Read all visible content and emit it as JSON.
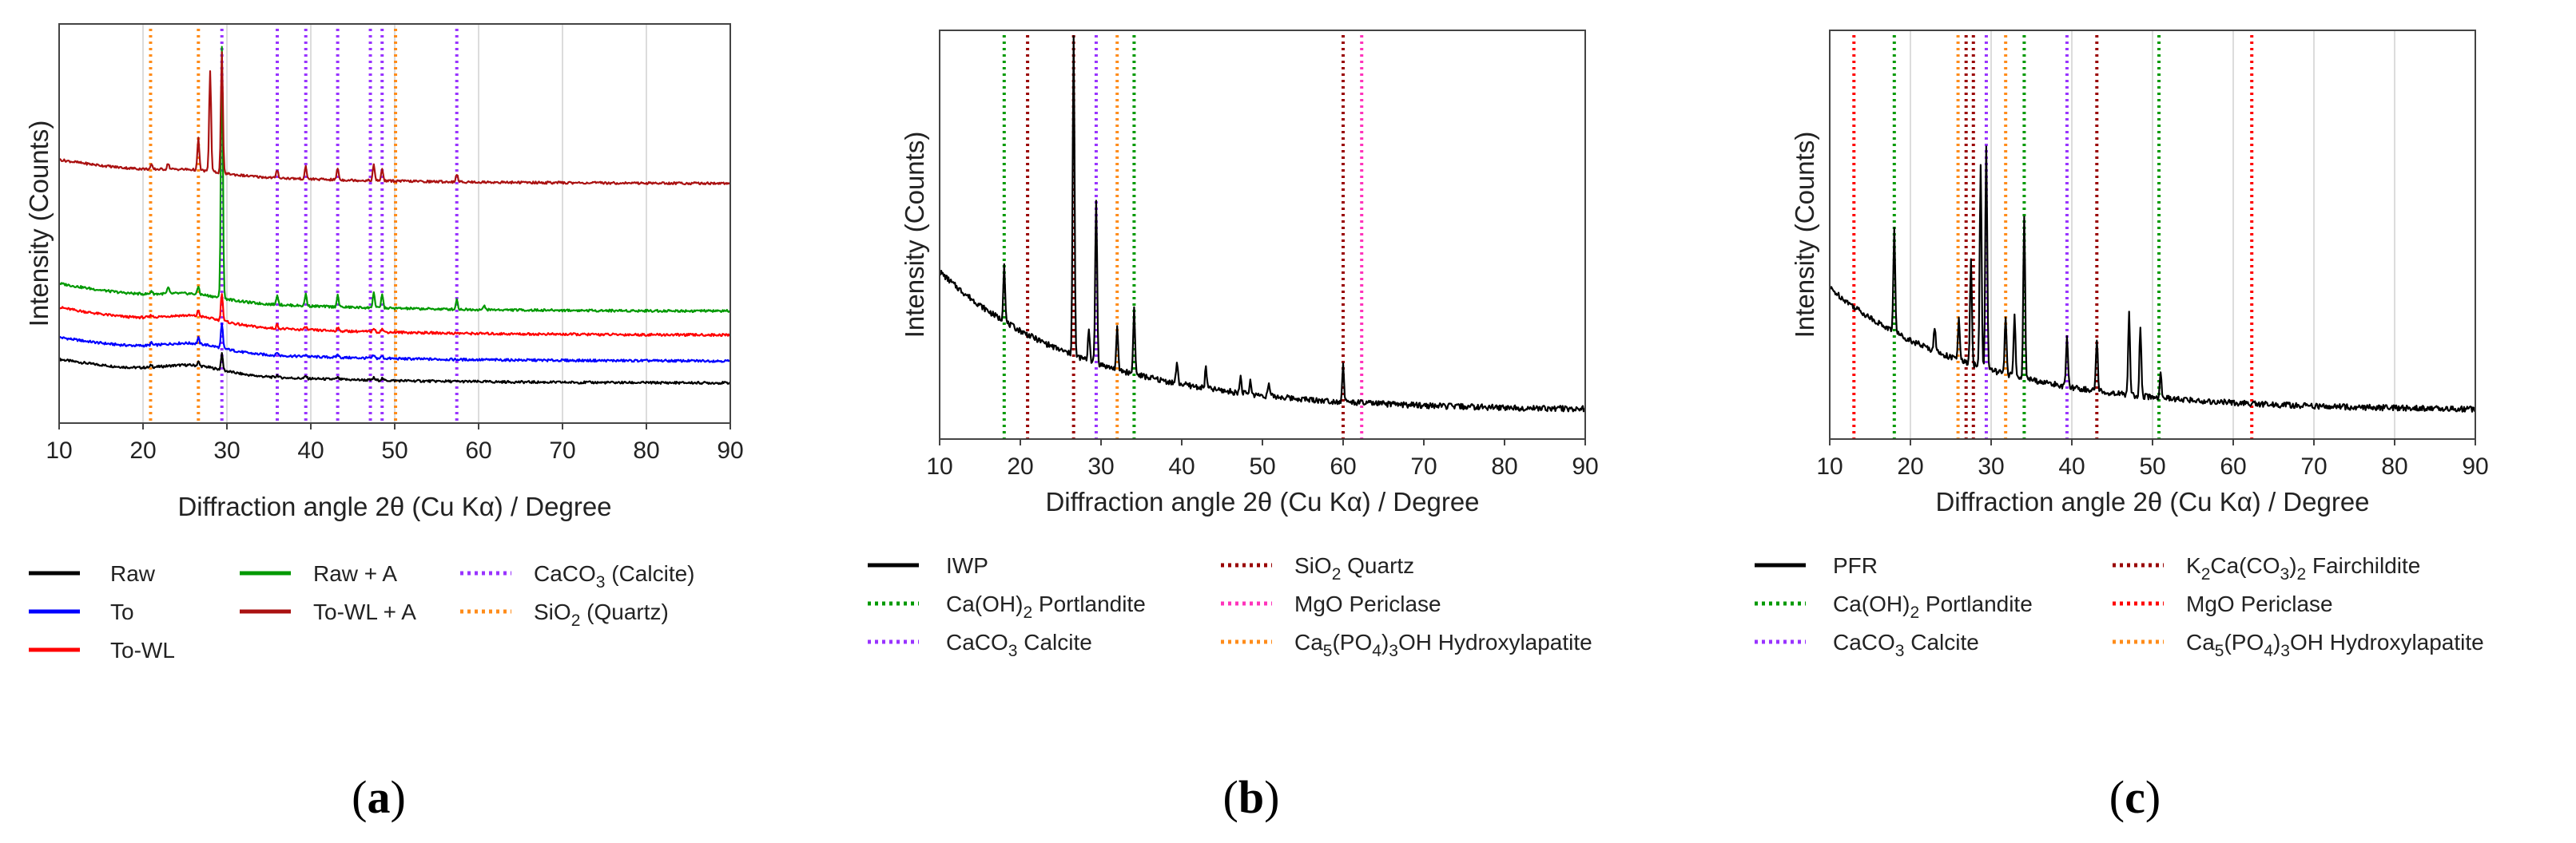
{
  "chart_data": [
    {
      "type": "line",
      "panel_label": "(a)",
      "xlabel": "Diffraction angle 2θ (Cu Kα) / Degree",
      "ylabel": "Intensity (Counts)",
      "xlim": [
        10,
        90
      ],
      "xticks": [
        10,
        20,
        30,
        40,
        50,
        60,
        70,
        80,
        90
      ],
      "ylim": [
        0,
        100
      ],
      "grid": true,
      "series": [
        {
          "name": "Raw",
          "color": "#000000",
          "offset": 10,
          "tilt": 6,
          "hump": 2,
          "peaks": [
            [
              21,
              0.6
            ],
            [
              26.6,
              1.0
            ],
            [
              29.4,
              4.0
            ],
            [
              36,
              0.6
            ],
            [
              39.4,
              0.6
            ],
            [
              43.2,
              0.5
            ],
            [
              47.5,
              0.6
            ],
            [
              48.5,
              0.5
            ]
          ]
        },
        {
          "name": "To",
          "color": "#0000ff",
          "offset": 15.5,
          "tilt": 6,
          "hump": 2,
          "peaks": [
            [
              21,
              0.6
            ],
            [
              26.6,
              1.5
            ],
            [
              29.4,
              6.0
            ],
            [
              36,
              0.8
            ],
            [
              39.4,
              0.6
            ],
            [
              43.2,
              0.8
            ],
            [
              47.5,
              0.7
            ],
            [
              48.5,
              0.6
            ]
          ]
        },
        {
          "name": "To-WL",
          "color": "#ff0000",
          "offset": 22,
          "tilt": 7,
          "hump": 2,
          "peaks": [
            [
              21,
              0.6
            ],
            [
              26.6,
              1.5
            ],
            [
              29.4,
              7.0
            ],
            [
              36,
              1.0
            ],
            [
              39.4,
              0.8
            ],
            [
              43.2,
              0.8
            ],
            [
              47.5,
              1.0
            ],
            [
              48.5,
              0.8
            ]
          ]
        },
        {
          "name": "Raw + A",
          "color": "#009900",
          "offset": 28,
          "tilt": 7,
          "hump": 1.5,
          "peaks": [
            [
              21,
              0.8
            ],
            [
              23,
              1.5
            ],
            [
              26.6,
              2.0
            ],
            [
              29.4,
              63.0
            ],
            [
              36,
              2.5
            ],
            [
              39.4,
              3.0
            ],
            [
              43.2,
              3.0
            ],
            [
              47.5,
              4.0
            ],
            [
              48.5,
              3.5
            ],
            [
              57.4,
              2.5
            ],
            [
              60.7,
              1.0
            ]
          ]
        },
        {
          "name": "To-WL + A",
          "color": "#aa1111",
          "offset": 60,
          "tilt": 6,
          "hump": 1,
          "peaks": [
            [
              21,
              1.0
            ],
            [
              23,
              1.5
            ],
            [
              26.6,
              8.0
            ],
            [
              28.0,
              25.0
            ],
            [
              29.4,
              30.0
            ],
            [
              36,
              2.0
            ],
            [
              39.4,
              3.0
            ],
            [
              43.2,
              3.0
            ],
            [
              47.5,
              4.0
            ],
            [
              48.5,
              3.0
            ],
            [
              57.4,
              2.0
            ]
          ]
        }
      ],
      "reference_lines": [
        {
          "name": "CaCO3 (Calcite)",
          "color": "#9933ff",
          "positions": [
            29.4,
            36.0,
            39.4,
            43.2,
            47.1,
            48.5,
            57.4
          ]
        },
        {
          "name": "SiO2 (Quartz)",
          "color": "#ff8c1a",
          "positions": [
            20.9,
            26.6,
            50.1
          ]
        }
      ]
    },
    {
      "type": "line",
      "panel_label": "(b)",
      "xlabel": "Diffraction angle 2θ (Cu Kα) / Degree",
      "ylabel": "Intensity (Counts)",
      "xlim": [
        10,
        90
      ],
      "xticks": [
        10,
        20,
        30,
        40,
        50,
        60,
        70,
        80,
        90
      ],
      "ylim": [
        0,
        100
      ],
      "grid": false,
      "series": [
        {
          "name": "IWP",
          "color": "#000000",
          "offset": 7,
          "tilt": 34,
          "hump": 0,
          "peaks": [
            [
              18.0,
              14.0
            ],
            [
              26.6,
              78.0
            ],
            [
              28.5,
              8.0
            ],
            [
              29.4,
              40.0
            ],
            [
              32.0,
              10.0
            ],
            [
              34.1,
              16.0
            ],
            [
              39.4,
              5.0
            ],
            [
              43.0,
              5.0
            ],
            [
              47.3,
              4.0
            ],
            [
              48.5,
              3.0
            ],
            [
              50.8,
              3.0
            ],
            [
              60.0,
              9.0
            ]
          ]
        }
      ],
      "reference_lines": [
        {
          "name": "Ca(OH)2 Portlandite",
          "color": "#009900",
          "positions": [
            18.0,
            34.1
          ]
        },
        {
          "name": "CaCO3 Calcite",
          "color": "#9933ff",
          "positions": [
            29.4
          ]
        },
        {
          "name": "SiO2 Quartz",
          "color": "#990000",
          "positions": [
            20.9,
            26.6,
            60.0
          ]
        },
        {
          "name": "MgO Periclase",
          "color": "#ff33bb",
          "positions": [
            62.3
          ]
        },
        {
          "name": "Ca5(PO4)3OH Hydroxylapatite",
          "color": "#ff8c1a",
          "positions": [
            32.0
          ]
        }
      ]
    },
    {
      "type": "line",
      "panel_label": "(c)",
      "xlabel": "Diffraction angle 2θ (Cu Kα) / Degree",
      "ylabel": "Intensity (Counts)",
      "xlim": [
        10,
        90
      ],
      "xticks": [
        10,
        20,
        30,
        40,
        50,
        60,
        70,
        80,
        90
      ],
      "ylim": [
        0,
        100
      ],
      "grid": true,
      "series": [
        {
          "name": "PFR",
          "color": "#000000",
          "offset": 7,
          "tilt": 30,
          "hump": 0,
          "peaks": [
            [
              18.0,
              25.0
            ],
            [
              23.0,
              6.0
            ],
            [
              26.0,
              10.0
            ],
            [
              27.5,
              25.0
            ],
            [
              28.7,
              50.0
            ],
            [
              29.4,
              55.0
            ],
            [
              31.8,
              14.0
            ],
            [
              32.9,
              15.0
            ],
            [
              34.1,
              40.0
            ],
            [
              39.4,
              12.0
            ],
            [
              43.1,
              13.0
            ],
            [
              47.1,
              20.0
            ],
            [
              48.5,
              17.0
            ],
            [
              51.0,
              6.0
            ]
          ]
        }
      ],
      "reference_lines": [
        {
          "name": "Ca(OH)2 Portlandite",
          "color": "#009900",
          "positions": [
            18.0,
            34.1,
            50.8
          ]
        },
        {
          "name": "CaCO3 Calcite",
          "color": "#9933ff",
          "positions": [
            29.4,
            39.4
          ]
        },
        {
          "name": "K2Ca(CO3)2 Fairchildite",
          "color": "#990000",
          "positions": [
            26.9,
            27.8,
            43.1
          ]
        },
        {
          "name": "MgO Periclase",
          "color": "#ff0000",
          "positions": [
            13.0,
            62.3
          ]
        },
        {
          "name": "Ca5(PO4)3OH Hydroxylapatite",
          "color": "#ff8c1a",
          "positions": [
            25.9,
            31.8
          ]
        }
      ]
    }
  ],
  "legends": [
    {
      "entries": [
        {
          "text": "Raw",
          "color": "#000000",
          "style": "solid"
        },
        {
          "text": "To",
          "color": "#0000ff",
          "style": "solid"
        },
        {
          "text": "To-WL",
          "color": "#ff0000",
          "style": "solid"
        },
        {
          "text": "Raw + A",
          "color": "#009900",
          "style": "solid"
        },
        {
          "text": "To-WL + A",
          "color": "#aa1111",
          "style": "solid"
        },
        {
          "text": "CaCO3 (Calcite)",
          "color": "#9933ff",
          "style": "dotted"
        },
        {
          "text": "SiO2 (Quartz)",
          "color": "#ff8c1a",
          "style": "dotted"
        }
      ]
    },
    {
      "entries": [
        {
          "text": "IWP",
          "color": "#000000",
          "style": "solid"
        },
        {
          "text": "Ca(OH)2 Portlandite",
          "color": "#009900",
          "style": "dotted"
        },
        {
          "text": "CaCO3 Calcite",
          "color": "#9933ff",
          "style": "dotted"
        },
        {
          "text": "SiO2 Quartz",
          "color": "#990000",
          "style": "dotted"
        },
        {
          "text": "MgO Periclase",
          "color": "#ff33bb",
          "style": "dotted"
        },
        {
          "text": "Ca5(PO4)3OH Hydroxylapatite",
          "color": "#ff8c1a",
          "style": "dotted"
        }
      ]
    },
    {
      "entries": [
        {
          "text": "PFR",
          "color": "#000000",
          "style": "solid"
        },
        {
          "text": "Ca(OH)2 Portlandite",
          "color": "#009900",
          "style": "dotted"
        },
        {
          "text": "CaCO3 Calcite",
          "color": "#9933ff",
          "style": "dotted"
        },
        {
          "text": "K2Ca(CO3)2 Fairchildite",
          "color": "#990000",
          "style": "dotted"
        },
        {
          "text": "MgO Periclase",
          "color": "#ff0000",
          "style": "dotted"
        },
        {
          "text": "Ca5(PO4)3OH Hydroxylapatite",
          "color": "#ff8c1a",
          "style": "dotted"
        }
      ]
    }
  ]
}
